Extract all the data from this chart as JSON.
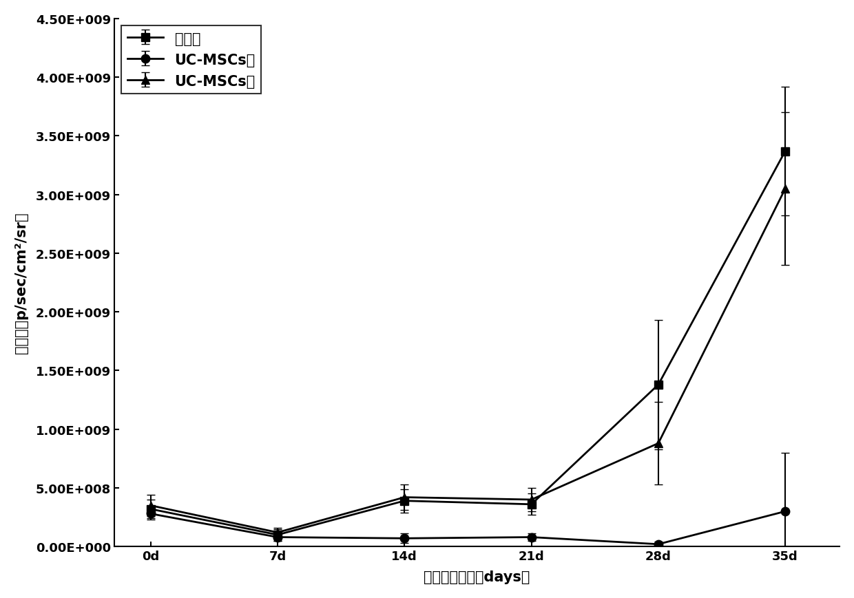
{
  "x_labels": [
    "0d",
    "7d",
    "14d",
    "21d",
    "28d",
    "35d"
  ],
  "x_values": [
    0,
    7,
    14,
    21,
    28,
    35
  ],
  "series": [
    {
      "label": "对照组",
      "marker": "s",
      "color": "#000000",
      "y": [
        320000000.0,
        100000000.0,
        390000000.0,
        360000000.0,
        1380000000.0,
        3370000000.0
      ],
      "yerr": [
        80000000.0,
        50000000.0,
        100000000.0,
        90000000.0,
        550000000.0,
        550000000.0
      ]
    },
    {
      "label": "UC-MSCs低",
      "marker": "o",
      "color": "#000000",
      "y": [
        280000000.0,
        80000000.0,
        70000000.0,
        80000000.0,
        20000000.0,
        300000000.0
      ],
      "yerr": [
        50000000.0,
        30000000.0,
        40000000.0,
        30000000.0,
        20000000.0,
        500000000.0
      ]
    },
    {
      "label": "UC-MSCs高",
      "marker": "^",
      "color": "#000000",
      "y": [
        350000000.0,
        120000000.0,
        420000000.0,
        400000000.0,
        880000000.0,
        3050000000.0
      ],
      "yerr": [
        90000000.0,
        40000000.0,
        110000000.0,
        100000000.0,
        350000000.0,
        650000000.0
      ]
    }
  ],
  "xlabel": "肿瘤生长时间（days）",
  "ylabel": "荧光値（p/sec/cm²/sr）",
  "ylim": [
    0,
    4500000000.0
  ],
  "yticks": [
    0,
    500000000.0,
    1000000000.0,
    1500000000.0,
    2000000000.0,
    2500000000.0,
    3000000000.0,
    3500000000.0,
    4000000000.0,
    4500000000.0
  ],
  "ytick_labels": [
    "0.00E+000",
    "5.00E+008",
    "1.00E+009",
    "1.50E+009",
    "2.00E+009",
    "2.50E+009",
    "3.00E+009",
    "3.50E+009",
    "4.00E+009",
    "4.50E+009"
  ],
  "linewidth": 2.0,
  "markersize": 9,
  "capsize": 4,
  "legend_fontsize": 15,
  "axis_fontsize": 15,
  "tick_fontsize": 13,
  "background_color": "#ffffff"
}
